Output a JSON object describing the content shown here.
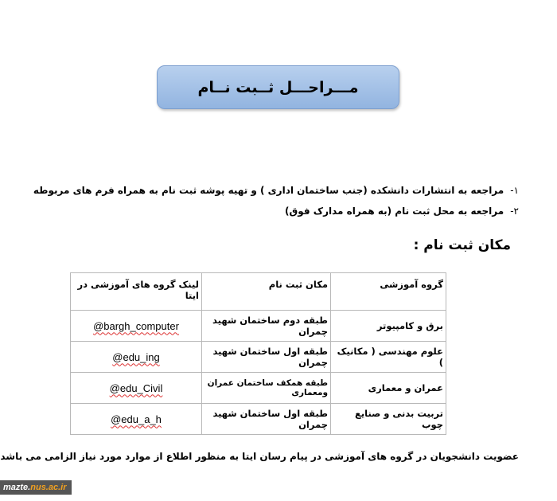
{
  "title": "مـــراحـــل ثــبت نــام",
  "steps": [
    {
      "num": "۱-",
      "text": "مراجعه به انتشارات دانشکده (جنب ساختمان اداری ) و تهیه پوشه ثبت نام به همراه فرم های مربوطه"
    },
    {
      "num": "۲-",
      "text": "مراجعه به محل ثبت نام (به همراه مدارک فوق)"
    }
  ],
  "location_heading": "مکان ثبت نام :",
  "table": {
    "headers": [
      "گروه آموزشی",
      "مکان ثبت نام",
      "لینک گروه های آموزشی در ایتا"
    ],
    "rows": [
      [
        "برق و کامپیوتر",
        "طبقه دوم ساختمان شهید چمران",
        "@bargh_computer"
      ],
      [
        "علوم مهندسی ( مکانیک )",
        "طبقه اول ساختمان شهید چمران",
        "@edu_ing"
      ],
      [
        "عمران و معماری",
        "طبقه همکف ساختمان عمران ومعماری",
        "@edu_Civil"
      ],
      [
        "تربیت بدنی و صنایع چوب",
        "طبقه اول ساختمان شهید چمران",
        "@edu_a_h"
      ]
    ]
  },
  "note": "عضویت دانشجویان در گروه های آموزشی در پیام رسان ایتا به منظور اطلاع از موارد مورد نیاز الزامی می باشد",
  "watermark": {
    "part1": "mazte.",
    "part2": "nus.ac.ir"
  },
  "colors": {
    "title_box": "#a6c2e8",
    "watermark_bg": "#555555",
    "watermark_accent": "#f0a020"
  }
}
